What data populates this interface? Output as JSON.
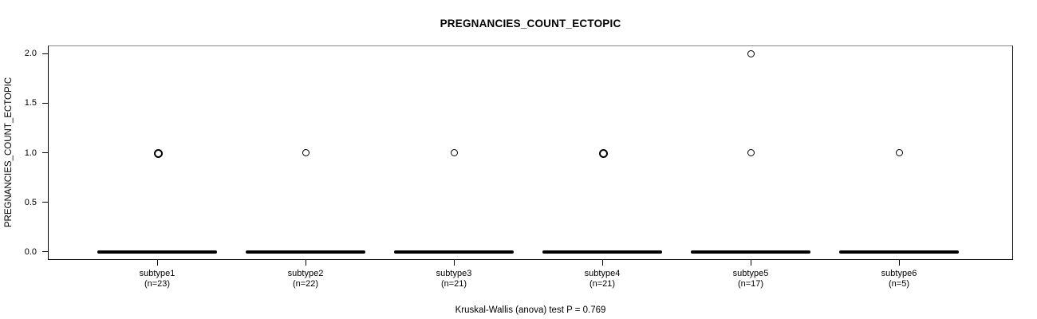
{
  "title": "PREGNANCIES_COUNT_ECTOPIC",
  "caption": "Kruskal-Wallis (anova) test P = 0.769",
  "colors": {
    "foreground": "#000000",
    "background": "#ffffff",
    "plot_top_border": "#888888"
  },
  "chart_data": {
    "type": "boxplot",
    "title": "PREGNANCIES_COUNT_ECTOPIC",
    "ylabel": "PREGNANCIES_COUNT_ECTOPIC",
    "xlabel": "",
    "caption": "Kruskal-Wallis (anova) test P = 0.769",
    "test": "Kruskal-Wallis (anova)",
    "p_value": 0.769,
    "grid": false,
    "legend": false,
    "ylim": [
      -0.084,
      2.084
    ],
    "yticks": [
      0.0,
      0.5,
      1.0,
      1.5,
      2.0
    ],
    "ytick_labels": [
      "0.0",
      "0.5",
      "1.0",
      "1.5",
      "2.0"
    ],
    "categories": [
      "subtype1",
      "subtype2",
      "subtype3",
      "subtype4",
      "subtype5",
      "subtype6"
    ],
    "n_labels": [
      "(n=23)",
      "(n=22)",
      "(n=21)",
      "(n=21)",
      "(n=17)",
      "(n=5)"
    ],
    "series": [
      {
        "name": "subtype1",
        "n": 23,
        "whisker_low": 0,
        "q1": 0,
        "median": 0,
        "q3": 0,
        "whisker_high": 0,
        "outliers": [
          1,
          1
        ]
      },
      {
        "name": "subtype2",
        "n": 22,
        "whisker_low": 0,
        "q1": 0,
        "median": 0,
        "q3": 0,
        "whisker_high": 0,
        "outliers": [
          1
        ]
      },
      {
        "name": "subtype3",
        "n": 21,
        "whisker_low": 0,
        "q1": 0,
        "median": 0,
        "q3": 0,
        "whisker_high": 0,
        "outliers": [
          1
        ]
      },
      {
        "name": "subtype4",
        "n": 21,
        "whisker_low": 0,
        "q1": 0,
        "median": 0,
        "q3": 0,
        "whisker_high": 0,
        "outliers": [
          1,
          1
        ]
      },
      {
        "name": "subtype5",
        "n": 17,
        "whisker_low": 0,
        "q1": 0,
        "median": 0,
        "q3": 0,
        "whisker_high": 0,
        "outliers": [
          1,
          2
        ]
      },
      {
        "name": "subtype6",
        "n": 5,
        "whisker_low": 0,
        "q1": 0,
        "median": 0,
        "q3": 0,
        "whisker_high": 0,
        "outliers": [
          1
        ]
      }
    ]
  }
}
